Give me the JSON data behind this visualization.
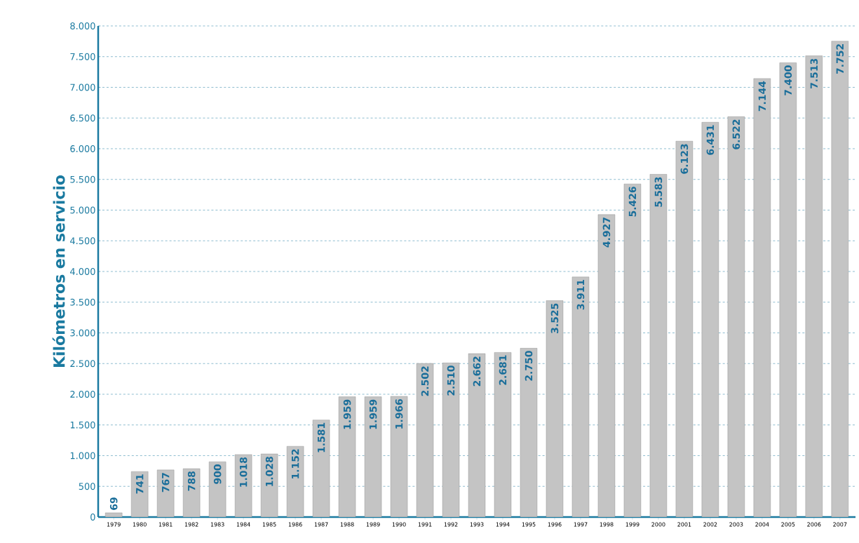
{
  "chart_data": {
    "type": "bar",
    "ylabel": "Kilómetros en servicio",
    "categories": [
      "1979",
      "1980",
      "1981",
      "1982",
      "1983",
      "1984",
      "1985",
      "1986",
      "1987",
      "1988",
      "1989",
      "1990",
      "1991",
      "1992",
      "1993",
      "1994",
      "1995",
      "1996",
      "1997",
      "1998",
      "1999",
      "2000",
      "2001",
      "2002",
      "2003",
      "2004",
      "2005",
      "2006",
      "2007"
    ],
    "values": [
      69,
      741,
      767,
      788,
      900,
      1018,
      1028,
      1152,
      1581,
      1959,
      1959,
      1966,
      2502,
      2510,
      2662,
      2681,
      2750,
      3525,
      3911,
      4927,
      5426,
      5583,
      6123,
      6431,
      6522,
      7144,
      7400,
      7513,
      7752
    ],
    "value_labels": [
      "69",
      "741",
      "767",
      "788",
      "900",
      "1.018",
      "1.028",
      "1.152",
      "1.581",
      "1.959",
      "1.959",
      "1.966",
      "2.502",
      "2.510",
      "2.662",
      "2.681",
      "2.750",
      "3.525",
      "3.911",
      "4.927",
      "5.426",
      "5.583",
      "6.123",
      "6.431",
      "6.522",
      "7.144",
      "7.400",
      "7.513",
      "7.752"
    ],
    "color": "#c4c4c4",
    "ylim": [
      0,
      8000
    ],
    "yticks": [
      {
        "value": 0,
        "label": "0"
      },
      {
        "value": 500,
        "label": "500"
      },
      {
        "value": 1000,
        "label": "1.000"
      },
      {
        "value": 1500,
        "label": "1.500"
      },
      {
        "value": 2000,
        "label": "2.000"
      },
      {
        "value": 2500,
        "label": "2.500"
      },
      {
        "value": 3000,
        "label": "3.000"
      },
      {
        "value": 3500,
        "label": "3.500"
      },
      {
        "value": 4000,
        "label": "4.000"
      },
      {
        "value": 4500,
        "label": "4.500"
      },
      {
        "value": 5000,
        "label": "5.000"
      },
      {
        "value": 5500,
        "label": "5.500"
      },
      {
        "value": 6000,
        "label": "6.000"
      },
      {
        "value": 6500,
        "label": "6.500"
      },
      {
        "value": 7000,
        "label": "7.000"
      },
      {
        "value": 7500,
        "label": "7.500"
      },
      {
        "value": 8000,
        "label": "8.000"
      }
    ],
    "grid": "y"
  }
}
